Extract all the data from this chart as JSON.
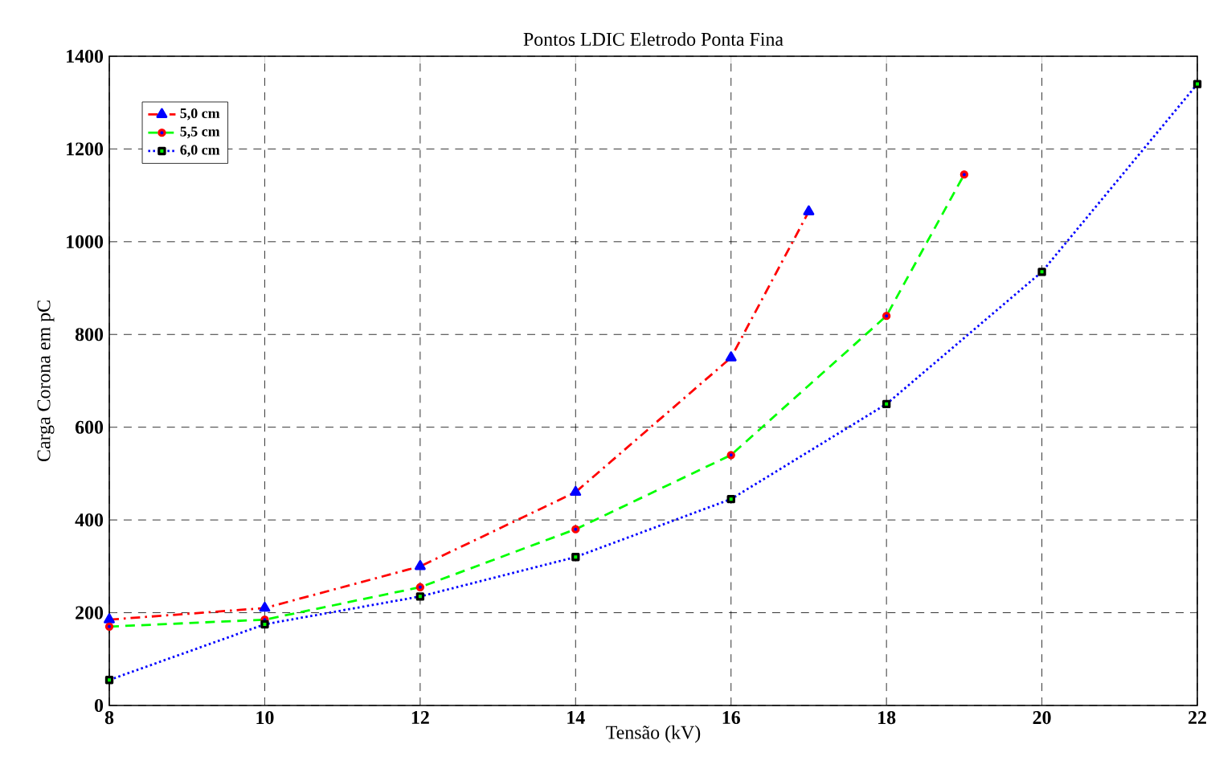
{
  "chart_data": {
    "type": "line",
    "title": "Pontos LDIC Eletrodo Ponta Fina",
    "xlabel": "Tensão (kV)",
    "ylabel": "Carga Corona em pC",
    "xlim": [
      8,
      22
    ],
    "xticks": [
      8,
      10,
      12,
      14,
      16,
      18,
      20,
      22
    ],
    "ylim": [
      0,
      1400
    ],
    "yticks": [
      0,
      200,
      400,
      600,
      800,
      1000,
      1200,
      1400
    ],
    "grid": true,
    "legend": "top left",
    "series": [
      {
        "name": "5,0 cm",
        "color": "#ff0000",
        "line_style": "dashdot",
        "marker": "triangle",
        "x": [
          8,
          10,
          12,
          14,
          16,
          17
        ],
        "values": [
          185,
          210,
          300,
          460,
          750,
          1065
        ]
      },
      {
        "name": "5,5 cm",
        "color": "#00ff00",
        "line_style": "dashed",
        "marker": "circle",
        "x": [
          8,
          10,
          12,
          14,
          16,
          18,
          19
        ],
        "values": [
          170,
          185,
          255,
          380,
          540,
          840,
          1145
        ]
      },
      {
        "name": "6,0 cm",
        "color": "#0000ff",
        "line_style": "dotted",
        "marker": "square",
        "x": [
          8,
          10,
          12,
          14,
          16,
          18,
          20,
          22
        ],
        "values": [
          55,
          175,
          235,
          320,
          445,
          650,
          935,
          1340
        ]
      }
    ]
  }
}
